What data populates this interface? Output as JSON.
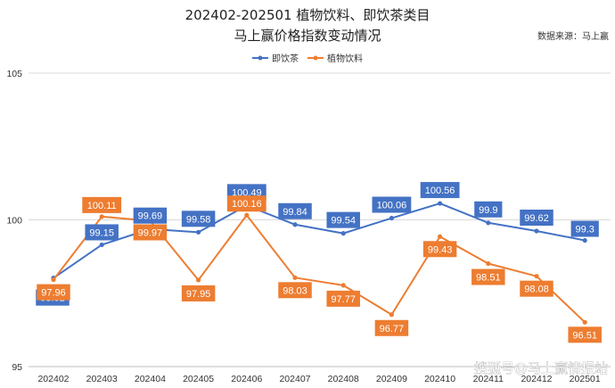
{
  "chart_data": {
    "type": "line",
    "title": [
      "202402-202501 植物饮料、即饮茶类目",
      "马上赢价格指数变动情况"
    ],
    "source": "数据来源：马上赢",
    "categories": [
      "202402",
      "202403",
      "202404",
      "202405",
      "202406",
      "202407",
      "202408",
      "202409",
      "202410",
      "202411",
      "202412",
      "202501"
    ],
    "series": [
      {
        "name": "即饮茶",
        "color": "#4472C4",
        "values": [
          98.02,
          99.15,
          99.69,
          99.58,
          100.49,
          99.84,
          99.54,
          100.06,
          100.56,
          99.9,
          99.62,
          99.3
        ],
        "labels": [
          "98.02",
          "99.15",
          "99.69",
          "99.58",
          "100.49",
          "99.84",
          "99.54",
          "100.06",
          "100.56",
          "99.9",
          "99.62",
          "99.3"
        ]
      },
      {
        "name": "植物饮料",
        "color": "#ED7D31",
        "values": [
          97.96,
          100.11,
          99.97,
          97.95,
          100.16,
          98.03,
          97.77,
          96.77,
          99.43,
          98.51,
          98.08,
          96.51
        ],
        "labels": [
          "97.96",
          "100.11",
          "99.97",
          "97.95",
          "100.16",
          "98.03",
          "97.77",
          "96.77",
          "99.43",
          "98.51",
          "98.08",
          "96.51"
        ]
      }
    ],
    "yticks": [
      95,
      100,
      105
    ],
    "ylim": [
      95,
      105
    ],
    "grid": true,
    "legend": "top-center"
  },
  "watermark": "搜狐号@马上赢情报站"
}
